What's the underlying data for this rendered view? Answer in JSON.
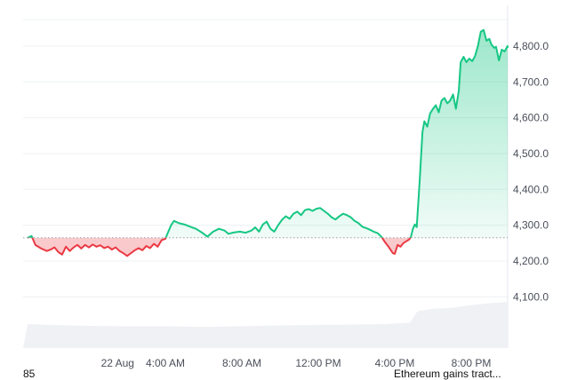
{
  "chart_data": {
    "type": "line",
    "title": "",
    "xlabel": "",
    "ylabel": "",
    "baseline": 4265,
    "ylim": [
      4000,
      4870
    ],
    "y_ticks": [
      {
        "value": 4100,
        "label": "4,100.0"
      },
      {
        "value": 4200,
        "label": "4,200.0"
      },
      {
        "value": 4300,
        "label": "4,300.0"
      },
      {
        "value": 4400,
        "label": "4,400.0"
      },
      {
        "value": 4500,
        "label": "4,500.0"
      },
      {
        "value": 4600,
        "label": "4,600.0"
      },
      {
        "value": 4700,
        "label": "4,700.0"
      },
      {
        "value": 4800,
        "label": "4,800.0"
      }
    ],
    "x_ticks": [
      {
        "t": 1.5,
        "label": "22 Aug"
      },
      {
        "t": 4,
        "label": "4:00 AM"
      },
      {
        "t": 8,
        "label": "8:00 AM"
      },
      {
        "t": 12,
        "label": "12:00 PM"
      },
      {
        "t": 16,
        "label": "4:00 PM"
      },
      {
        "t": 20,
        "label": "8:00 PM"
      }
    ],
    "xlim": [
      -3.2,
      21.2
    ],
    "series": [
      {
        "values": [
          [
            -3.2,
            4265
          ],
          [
            -3.0,
            4270
          ],
          [
            -2.8,
            4245
          ],
          [
            -2.5,
            4235
          ],
          [
            -2.2,
            4228
          ],
          [
            -2.0,
            4232
          ],
          [
            -1.8,
            4238
          ],
          [
            -1.6,
            4225
          ],
          [
            -1.4,
            4218
          ],
          [
            -1.2,
            4240
          ],
          [
            -1.0,
            4228
          ],
          [
            -0.8,
            4238
          ],
          [
            -0.6,
            4245
          ],
          [
            -0.4,
            4235
          ],
          [
            -0.2,
            4245
          ],
          [
            0.0,
            4238
          ],
          [
            0.2,
            4246
          ],
          [
            0.4,
            4240
          ],
          [
            0.6,
            4244
          ],
          [
            0.8,
            4236
          ],
          [
            1.0,
            4240
          ],
          [
            1.2,
            4232
          ],
          [
            1.4,
            4238
          ],
          [
            1.6,
            4228
          ],
          [
            1.8,
            4222
          ],
          [
            2.0,
            4214
          ],
          [
            2.2,
            4222
          ],
          [
            2.4,
            4230
          ],
          [
            2.6,
            4236
          ],
          [
            2.8,
            4230
          ],
          [
            3.0,
            4242
          ],
          [
            3.2,
            4236
          ],
          [
            3.4,
            4248
          ],
          [
            3.6,
            4240
          ],
          [
            3.8,
            4258
          ],
          [
            4.0,
            4262
          ],
          [
            4.1,
            4275
          ],
          [
            4.3,
            4300
          ],
          [
            4.45,
            4312
          ],
          [
            4.7,
            4306
          ],
          [
            5.0,
            4302
          ],
          [
            5.3,
            4296
          ],
          [
            5.6,
            4290
          ],
          [
            5.9,
            4280
          ],
          [
            6.2,
            4268
          ],
          [
            6.5,
            4282
          ],
          [
            6.8,
            4290
          ],
          [
            7.1,
            4285
          ],
          [
            7.3,
            4276
          ],
          [
            7.6,
            4280
          ],
          [
            7.9,
            4282
          ],
          [
            8.2,
            4279
          ],
          [
            8.5,
            4285
          ],
          [
            8.7,
            4294
          ],
          [
            8.9,
            4282
          ],
          [
            9.1,
            4302
          ],
          [
            9.3,
            4310
          ],
          [
            9.5,
            4290
          ],
          [
            9.7,
            4282
          ],
          [
            9.9,
            4300
          ],
          [
            10.1,
            4315
          ],
          [
            10.3,
            4325
          ],
          [
            10.5,
            4318
          ],
          [
            10.7,
            4332
          ],
          [
            10.9,
            4338
          ],
          [
            11.1,
            4328
          ],
          [
            11.3,
            4342
          ],
          [
            11.5,
            4345
          ],
          [
            11.7,
            4340
          ],
          [
            11.9,
            4346
          ],
          [
            12.1,
            4348
          ],
          [
            12.3,
            4340
          ],
          [
            12.5,
            4332
          ],
          [
            12.7,
            4322
          ],
          [
            12.9,
            4316
          ],
          [
            13.1,
            4325
          ],
          [
            13.3,
            4332
          ],
          [
            13.5,
            4328
          ],
          [
            13.7,
            4322
          ],
          [
            13.9,
            4312
          ],
          [
            14.1,
            4306
          ],
          [
            14.3,
            4296
          ],
          [
            14.6,
            4290
          ],
          [
            14.9,
            4282
          ],
          [
            15.1,
            4278
          ],
          [
            15.3,
            4268
          ],
          [
            15.5,
            4252
          ],
          [
            15.7,
            4238
          ],
          [
            15.9,
            4222
          ],
          [
            16.0,
            4220
          ],
          [
            16.15,
            4245
          ],
          [
            16.3,
            4240
          ],
          [
            16.45,
            4250
          ],
          [
            16.6,
            4255
          ],
          [
            16.75,
            4260
          ],
          [
            16.85,
            4268
          ],
          [
            16.95,
            4290
          ],
          [
            17.05,
            4302
          ],
          [
            17.15,
            4295
          ],
          [
            17.3,
            4420
          ],
          [
            17.45,
            4560
          ],
          [
            17.55,
            4590
          ],
          [
            17.7,
            4575
          ],
          [
            17.85,
            4612
          ],
          [
            18.0,
            4625
          ],
          [
            18.15,
            4635
          ],
          [
            18.3,
            4615
          ],
          [
            18.45,
            4648
          ],
          [
            18.6,
            4655
          ],
          [
            18.75,
            4640
          ],
          [
            18.9,
            4648
          ],
          [
            19.05,
            4665
          ],
          [
            19.2,
            4625
          ],
          [
            19.35,
            4675
          ],
          [
            19.45,
            4755
          ],
          [
            19.6,
            4770
          ],
          [
            19.75,
            4755
          ],
          [
            19.9,
            4765
          ],
          [
            20.05,
            4758
          ],
          [
            20.2,
            4772
          ],
          [
            20.35,
            4800
          ],
          [
            20.5,
            4840
          ],
          [
            20.65,
            4845
          ],
          [
            20.8,
            4815
          ],
          [
            20.95,
            4820
          ],
          [
            21.05,
            4805
          ],
          [
            21.2,
            4795
          ],
          [
            21.3,
            4798
          ],
          [
            21.45,
            4760
          ],
          [
            21.6,
            4790
          ],
          [
            21.75,
            4785
          ],
          [
            21.9,
            4800
          ],
          [
            22.0,
            4795
          ]
        ],
        "colors": {
          "up": "#16c784",
          "down": "#ea3943"
        }
      }
    ],
    "volume": {
      "color": "#eff1f4",
      "values": [
        [
          -3.2,
          0.52
        ],
        [
          -2.0,
          0.5
        ],
        [
          0.0,
          0.48
        ],
        [
          2.0,
          0.47
        ],
        [
          4.0,
          0.47
        ],
        [
          6.0,
          0.46
        ],
        [
          8.0,
          0.47
        ],
        [
          10.0,
          0.49
        ],
        [
          12.0,
          0.5
        ],
        [
          14.0,
          0.51
        ],
        [
          15.5,
          0.52
        ],
        [
          16.8,
          0.55
        ],
        [
          17.2,
          0.8
        ],
        [
          18.0,
          0.85
        ],
        [
          19.0,
          0.87
        ],
        [
          20.0,
          0.93
        ],
        [
          21.0,
          0.97
        ],
        [
          22.0,
          1.0
        ]
      ]
    },
    "grid": true,
    "legend": "none"
  },
  "footer": {
    "left_text": "85",
    "right_text": "Ethereum gains tract..."
  },
  "colors": {
    "grid": "#eef0f3",
    "baseline": "#9aa0aa",
    "axis_text": "#4a4f5a"
  }
}
